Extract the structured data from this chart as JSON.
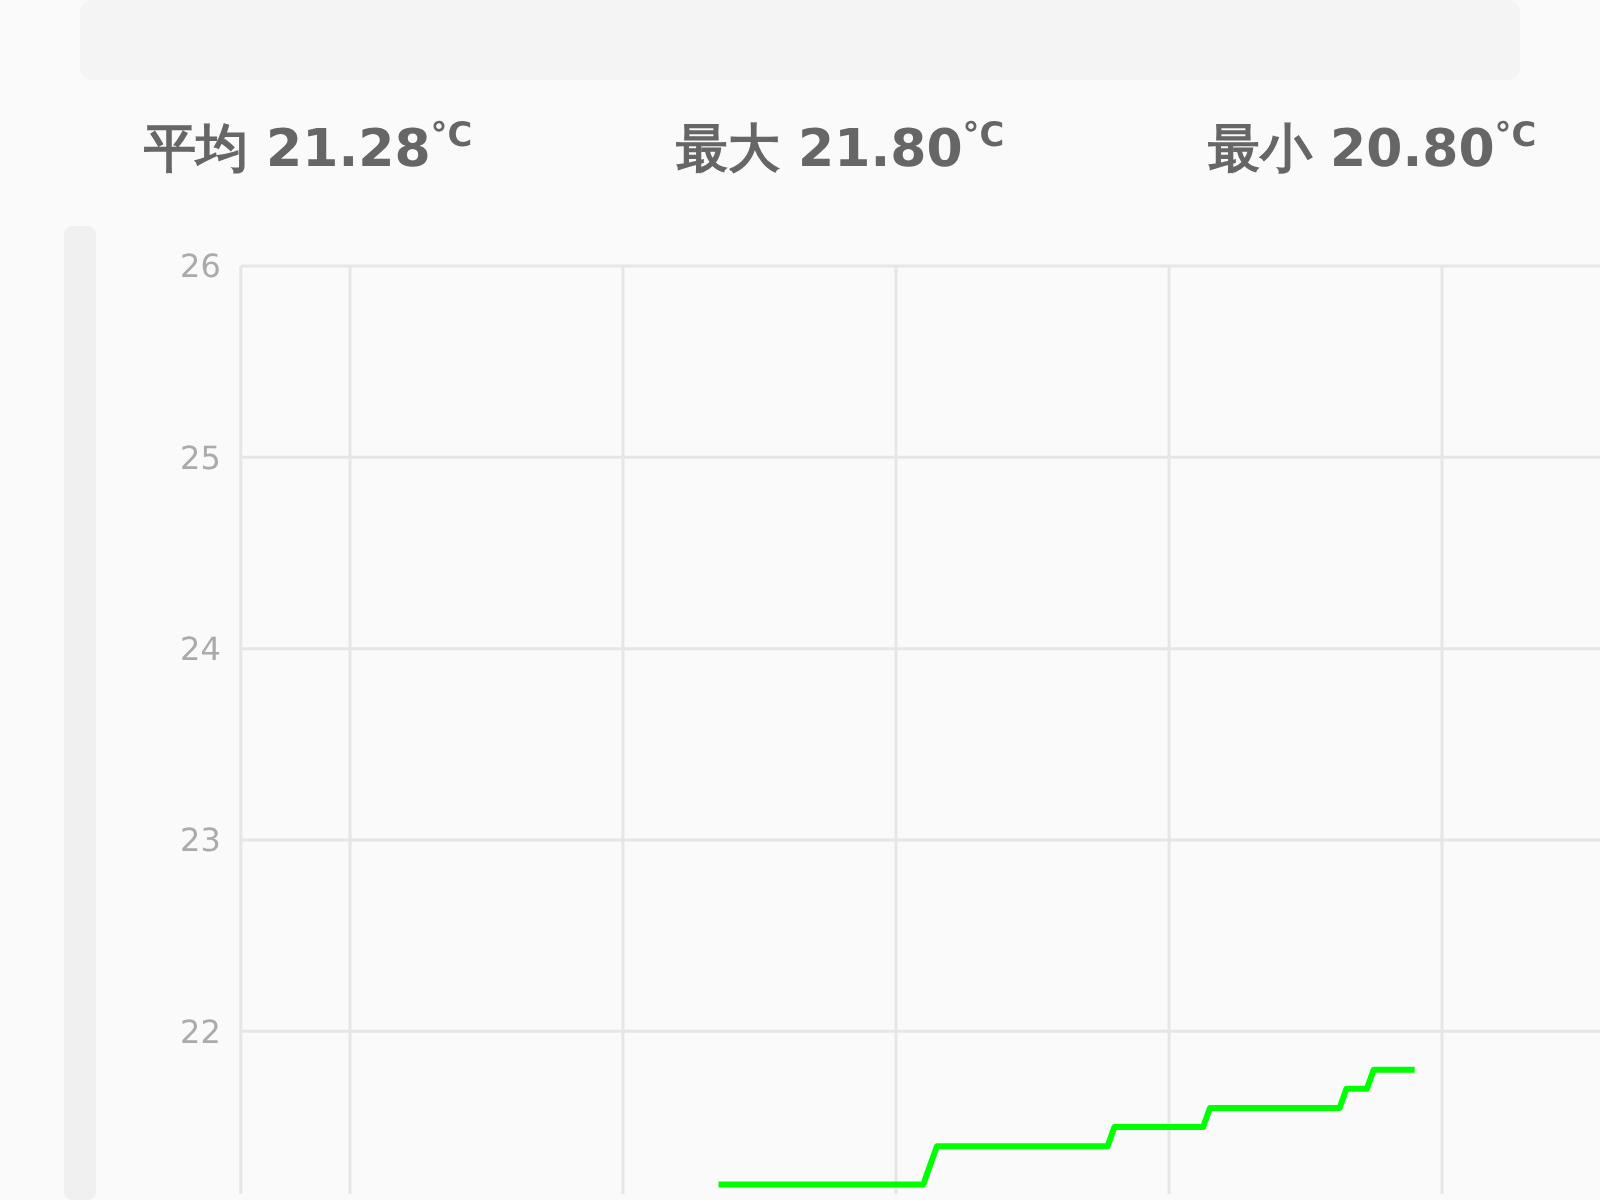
{
  "chart_data": {
    "type": "line",
    "annotations": [
      "平均 21.28$^{°C}$",
      "最大 21.80$^{°C}$",
      "最小 20.80$^{°C}$"
    ],
    "categories": [
      null,
      null,
      null,
      null,
      null,
      null,
      null,
      null,
      null,
      null,
      null,
      null,
      null,
      null,
      null,
      null,
      null,
      null,
      null,
      null,
      null,
      null,
      null,
      null,
      null,
      null,
      null,
      null,
      null,
      null,
      null,
      null,
      null,
      null,
      null,
      null,
      null,
      null,
      null,
      null,
      null,
      null,
      null,
      null,
      null,
      null,
      null,
      null,
      null,
      null,
      null,
      null,
      null,
      null,
      null,
      null,
      null,
      null,
      null,
      null,
      null,
      null,
      null,
      null,
      null,
      null,
      null,
      null,
      null,
      null,
      null,
      null,
      null,
      null,
      null,
      null,
      null,
      null,
      null,
      null,
      null,
      null,
      null,
      null,
      null,
      null,
      null,
      null,
      null,
      null,
      null,
      null,
      null,
      null,
      null,
      null,
      null,
      null,
      null,
      null,
      null,
      null,
      null,
      null,
      null,
      null,
      null,
      null,
      null,
      null,
      null,
      null,
      null,
      null,
      null,
      null,
      null,
      null,
      null,
      null,
      null,
      null,
      null,
      null,
      null,
      null,
      null,
      null,
      null,
      null,
      null,
      null,
      null,
      null,
      null,
      null,
      null,
      null,
      null,
      null,
      null,
      null,
      null,
      null,
      null,
      null,
      null,
      null,
      null,
      null,
      null,
      null,
      null,
      null,
      null,
      null,
      null,
      null,
      null,
      null,
      null,
      null,
      null,
      null,
      null,
      null,
      null,
      null,
      null,
      null,
      null,
      null,
      null,
      null,
      null,
      null,
      null,
      null,
      null,
      null,
      null,
      null,
      null,
      null,
      null,
      null,
      null,
      null,
      null,
      null,
      null,
      null,
      null,
      null,
      null,
      null,
      null,
      null,
      null,
      null
    ],
    "series": [
      {
        "color": "#00ff00",
        "values": [
          null,
          null,
          null,
          null,
          null,
          null,
          null,
          null,
          null,
          null,
          null,
          null,
          null,
          null,
          null,
          null,
          null,
          null,
          null,
          null,
          null,
          null,
          null,
          null,
          null,
          null,
          null,
          null,
          null,
          null,
          null,
          null,
          null,
          null,
          null,
          null,
          null,
          null,
          null,
          null,
          null,
          null,
          null,
          null,
          null,
          null,
          null,
          null,
          null,
          null,
          null,
          null,
          null,
          null,
          null,
          null,
          null,
          null,
          null,
          null,
          null,
          null,
          null,
          null,
          null,
          null,
          null,
          null,
          null,
          null,
          21.2,
          21.2,
          21.2,
          21.2,
          21.2,
          21.2,
          21.2,
          21.2,
          21.2,
          21.2,
          21.2,
          21.2,
          21.2,
          21.2,
          21.2,
          21.2,
          21.2,
          21.2,
          21.2,
          21.2,
          21.2,
          21.2,
          21.2,
          21.2,
          21.2,
          21.2,
          21.2,
          21.2,
          21.2,
          21.2,
          21.2,
          21.3,
          21.4,
          21.4,
          21.4,
          21.4,
          21.4,
          21.4,
          21.4,
          21.4,
          21.4,
          21.4,
          21.4,
          21.4,
          21.4,
          21.4,
          21.4,
          21.4,
          21.4,
          21.4,
          21.4,
          21.4,
          21.4,
          21.4,
          21.4,
          21.4,
          21.4,
          21.4,
          21.5,
          21.5,
          21.5,
          21.5,
          21.5,
          21.5,
          21.5,
          21.5,
          21.5,
          21.5,
          21.5,
          21.5,
          21.5,
          21.5,
          21.6,
          21.6,
          21.6,
          21.6,
          21.6,
          21.6,
          21.6,
          21.6,
          21.6,
          21.6,
          21.6,
          21.6,
          21.6,
          21.6,
          21.6,
          21.6,
          21.6,
          21.6,
          21.6,
          21.6,
          21.7,
          21.7,
          21.7,
          21.7,
          21.8,
          21.8,
          21.8,
          21.8,
          21.8,
          21.8,
          21.8,
          null,
          null,
          null,
          null,
          null,
          null,
          null,
          null,
          null,
          null,
          null,
          null,
          null,
          null,
          null,
          null,
          null,
          null,
          null,
          null,
          null,
          null,
          null,
          null,
          null,
          null,
          null
        ]
      }
    ],
    "ylim": [
      21.15,
      26
    ],
    "yticks": [
      22,
      23,
      24,
      25,
      26
    ],
    "grid": true,
    "tick_labels": "y"
  }
}
